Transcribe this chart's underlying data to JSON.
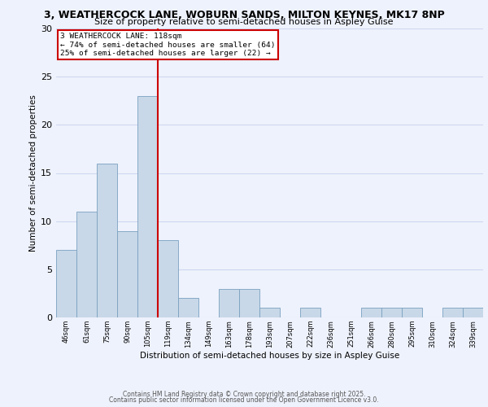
{
  "title_line1": "3, WEATHERCOCK LANE, WOBURN SANDS, MILTON KEYNES, MK17 8NP",
  "title_line2": "Size of property relative to semi-detached houses in Aspley Guise",
  "xlabel": "Distribution of semi-detached houses by size in Aspley Guise",
  "ylabel": "Number of semi-detached properties",
  "bin_labels": [
    "46sqm",
    "61sqm",
    "75sqm",
    "90sqm",
    "105sqm",
    "119sqm",
    "134sqm",
    "149sqm",
    "163sqm",
    "178sqm",
    "193sqm",
    "207sqm",
    "222sqm",
    "236sqm",
    "251sqm",
    "266sqm",
    "280sqm",
    "295sqm",
    "310sqm",
    "324sqm",
    "339sqm"
  ],
  "bin_values": [
    7,
    11,
    16,
    9,
    23,
    8,
    2,
    0,
    3,
    3,
    1,
    0,
    1,
    0,
    0,
    1,
    1,
    1,
    0,
    1,
    1
  ],
  "bar_color": "#c8d8e8",
  "bar_edge_color": "#7aa0c0",
  "vline_color": "#cc0000",
  "annotation_text": "3 WEATHERCOCK LANE: 118sqm\n← 74% of semi-detached houses are smaller (64)\n25% of semi-detached houses are larger (22) →",
  "annotation_box_color": "#cc0000",
  "ylim": [
    0,
    30
  ],
  "yticks": [
    0,
    5,
    10,
    15,
    20,
    25,
    30
  ],
  "bg_color": "#eef2fc",
  "grid_color": "#d0d8f0",
  "footer_line1": "Contains HM Land Registry data © Crown copyright and database right 2025.",
  "footer_line2": "Contains public sector information licensed under the Open Government Licence v3.0."
}
